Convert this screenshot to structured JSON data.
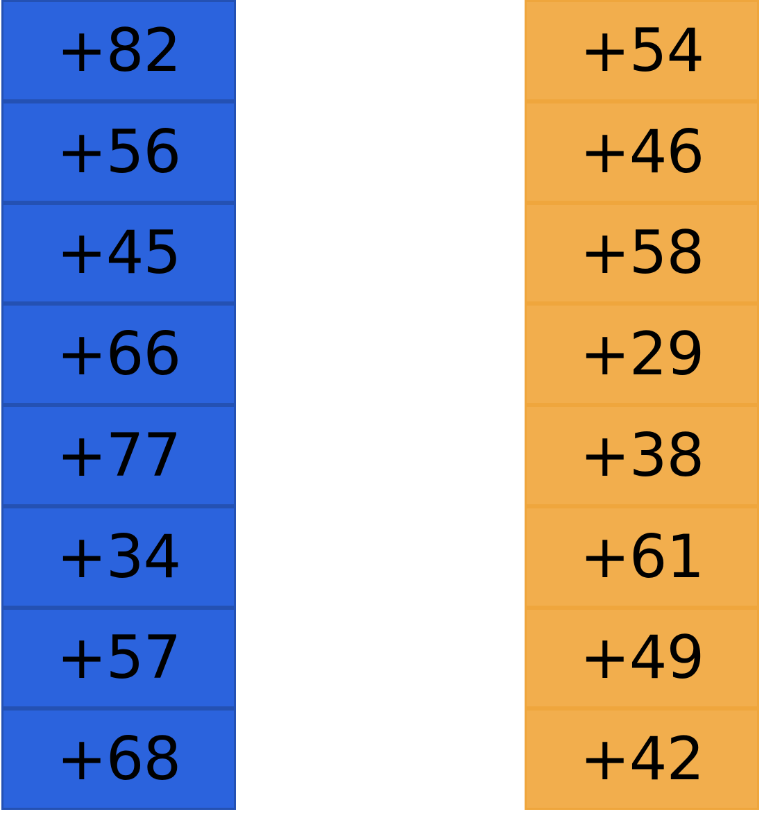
{
  "colors": {
    "left_fill": "#2B63DD",
    "left_border": "#2451B3",
    "right_fill": "#F2AE4D",
    "right_border": "#EFA63D"
  },
  "left_column": {
    "values": [
      "+82",
      "+56",
      "+45",
      "+66",
      "+77",
      "+34",
      "+57",
      "+68"
    ]
  },
  "right_column": {
    "values": [
      "+54",
      "+46",
      "+58",
      "+29",
      "+38",
      "+61",
      "+49",
      "+42"
    ]
  }
}
